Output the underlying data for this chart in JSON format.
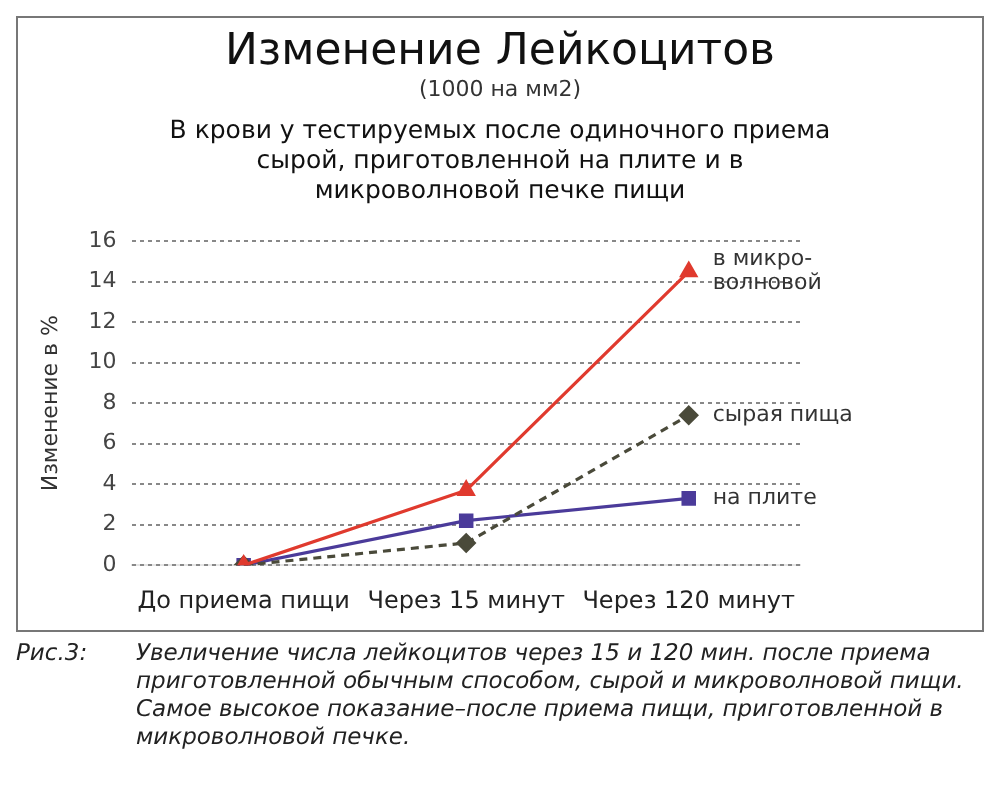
{
  "chart_data": {
    "type": "line",
    "title": "Изменение Лейкоцитов",
    "subtitle": "(1000 на мм2)",
    "annotations": [
      "В крови у тестируемых после одиночного приема сырой, приготовленной на плите и в микроволновой печке пищи",
      "Рис.3: Увеличение числа лейкоцитов через 15 и 120 мин. после приема приготовленной обычным способом, сырой и микроволновой пищи. Самое высокое показание–после приема пищи, приготовленной в микроволновой печке."
    ],
    "ylabel": "Изменение в %",
    "categories": [
      "До приема пищи",
      "Через 15 минут",
      "Через 120 минут"
    ],
    "series": [
      {
        "name": "в микро-волновой",
        "color": "#e03a2e",
        "values": [
          0,
          3.7,
          14.5
        ],
        "marker": "triangle",
        "line_style": "solid"
      },
      {
        "name": "сырая пища",
        "color": "#4a4a3a",
        "values": [
          0,
          1.1,
          7.4
        ],
        "marker": "diamond",
        "line_style": "dashed"
      },
      {
        "name": "на плите",
        "color": "#4b3b9a",
        "values": [
          0,
          2.2,
          3.3
        ],
        "marker": "square",
        "line_style": "solid"
      }
    ],
    "ylim": [
      0,
      16
    ],
    "yticks": [
      0,
      2,
      4,
      6,
      8,
      10,
      12,
      14,
      16
    ],
    "grid": "y",
    "legend": false
  }
}
